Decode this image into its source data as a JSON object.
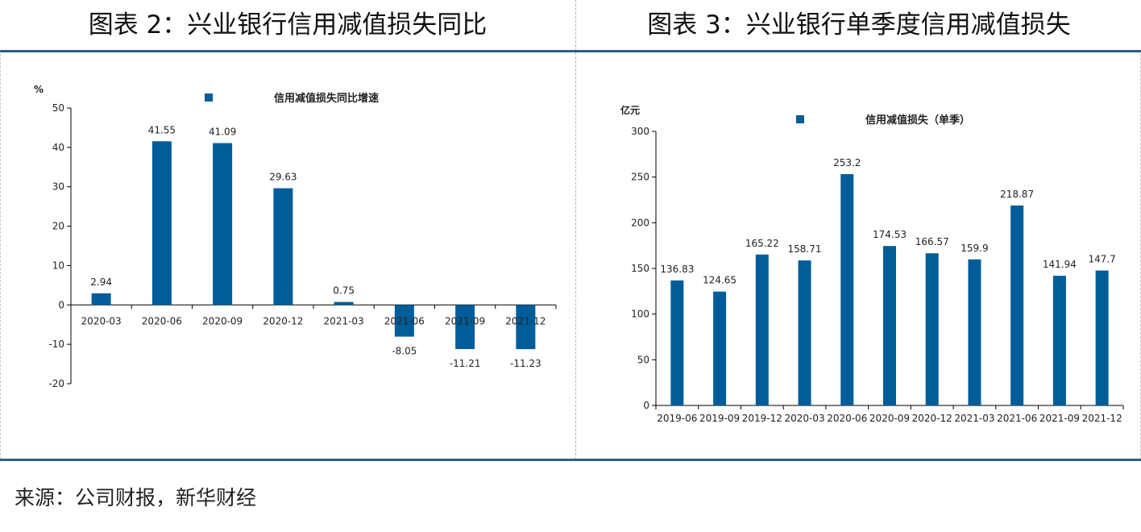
{
  "panels": {
    "left_title": "图表 2：兴业银行信用减值损失同比",
    "right_title": "图表 3：兴业银行单季度信用减值损失"
  },
  "source": "来源：公司财报，新华财经",
  "colors": {
    "bar": "#005d99",
    "rule": "#2e5d8c"
  },
  "chart_data": [
    {
      "type": "bar",
      "unit": "%",
      "legend": "信用减值损失同比增速",
      "legend_position": "top",
      "categories": [
        "2020-03",
        "2020-06",
        "2020-09",
        "2020-12",
        "2021-03",
        "2021-06",
        "2021-09",
        "2021-12"
      ],
      "values": [
        2.94,
        41.55,
        41.09,
        29.63,
        0.75,
        -8.05,
        -11.21,
        -11.23
      ],
      "value_labels": [
        "2.94",
        "41.55",
        "41.09",
        "29.63",
        "0.75",
        "-8.05",
        "-11.21",
        "-11.23"
      ],
      "ylim": [
        -20,
        50
      ],
      "yticks": [
        "50",
        "40",
        "30",
        "20",
        "10",
        "0",
        "-10",
        "-20"
      ],
      "ytick_values": [
        50,
        40,
        30,
        20,
        10,
        0,
        -10,
        -20
      ],
      "grid": false
    },
    {
      "type": "bar",
      "unit": "亿元",
      "legend": "信用减值损失（单季）",
      "legend_position": "top",
      "categories": [
        "2019-06",
        "2019-09",
        "2019-12",
        "2020-03",
        "2020-06",
        "2020-09",
        "2020-12",
        "2021-03",
        "2021-06",
        "2021-09",
        "2021-12"
      ],
      "values": [
        136.83,
        124.65,
        165.22,
        158.71,
        253.2,
        174.53,
        166.57,
        159.9,
        218.87,
        141.94,
        147.7
      ],
      "value_labels": [
        "136.83",
        "124.65",
        "165.22",
        "158.71",
        "253.2",
        "174.53",
        "166.57",
        "159.9",
        "218.87",
        "141.94",
        "147.7"
      ],
      "ylim": [
        0,
        300
      ],
      "yticks": [
        "300",
        "250",
        "200",
        "150",
        "100",
        "50",
        "0"
      ],
      "ytick_values": [
        300,
        250,
        200,
        150,
        100,
        50,
        0
      ],
      "grid": false
    }
  ]
}
